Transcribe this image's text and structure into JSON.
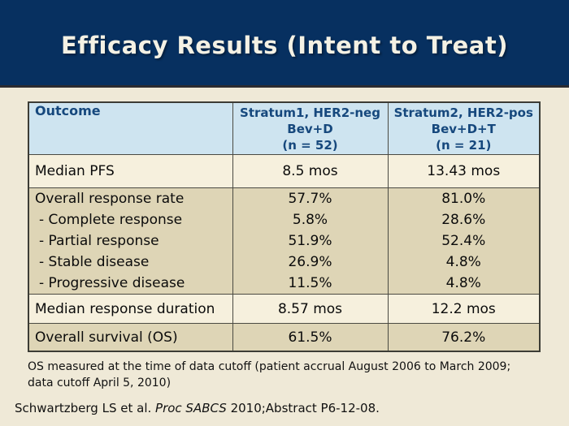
{
  "slide": {
    "title": "Efficacy Results (Intent to Treat)"
  },
  "colors": {
    "title_band_navy": "#073060",
    "title_text": "#f4f1e4",
    "page_background_cream": "#efe9d7",
    "table_header_blue": "#cee4f0",
    "table_header_text_navy": "#16487d",
    "row_light_cream": "#f6f0dd",
    "row_tan": "#ded5b6",
    "table_border": "#4a4a42"
  },
  "table": {
    "outcome_header": "Outcome",
    "columns": [
      {
        "line1": "Stratum1, HER2-neg",
        "line2": "Bev+D",
        "line3": "(n = 52)"
      },
      {
        "line1": "Stratum2, HER2-pos",
        "line2": "Bev+D+T",
        "line3": "(n = 21)"
      }
    ],
    "rows": [
      {
        "label": "Median PFS",
        "stratum1": "8.5 mos",
        "stratum2": "13.43 mos"
      },
      {
        "label": "Overall response rate",
        "stratum1": "57.7%",
        "stratum2": "81.0%"
      },
      {
        "label": "- Complete response",
        "stratum1": "5.8%",
        "stratum2": "28.6%"
      },
      {
        "label": "- Partial response",
        "stratum1": "51.9%",
        "stratum2": "52.4%"
      },
      {
        "label": "- Stable disease",
        "stratum1": "26.9%",
        "stratum2": "4.8%"
      },
      {
        "label": "- Progressive disease",
        "stratum1": "11.5%",
        "stratum2": "4.8%"
      },
      {
        "label": "Median response duration",
        "stratum1": "8.57 mos",
        "stratum2": "12.2 mos"
      },
      {
        "label": "Overall survival (OS)",
        "stratum1": "61.5%",
        "stratum2": "76.2%"
      }
    ]
  },
  "footnote": {
    "line1": "OS measured at the time of data cutoff (patient accrual August 2006 to March 2009;",
    "line2": "data cutoff April 5, 2010)"
  },
  "citation": {
    "prefix": "Schwartzberg LS et al. ",
    "italic": "Proc SABCS",
    "suffix": " 2010;Abstract P6-12-08."
  }
}
